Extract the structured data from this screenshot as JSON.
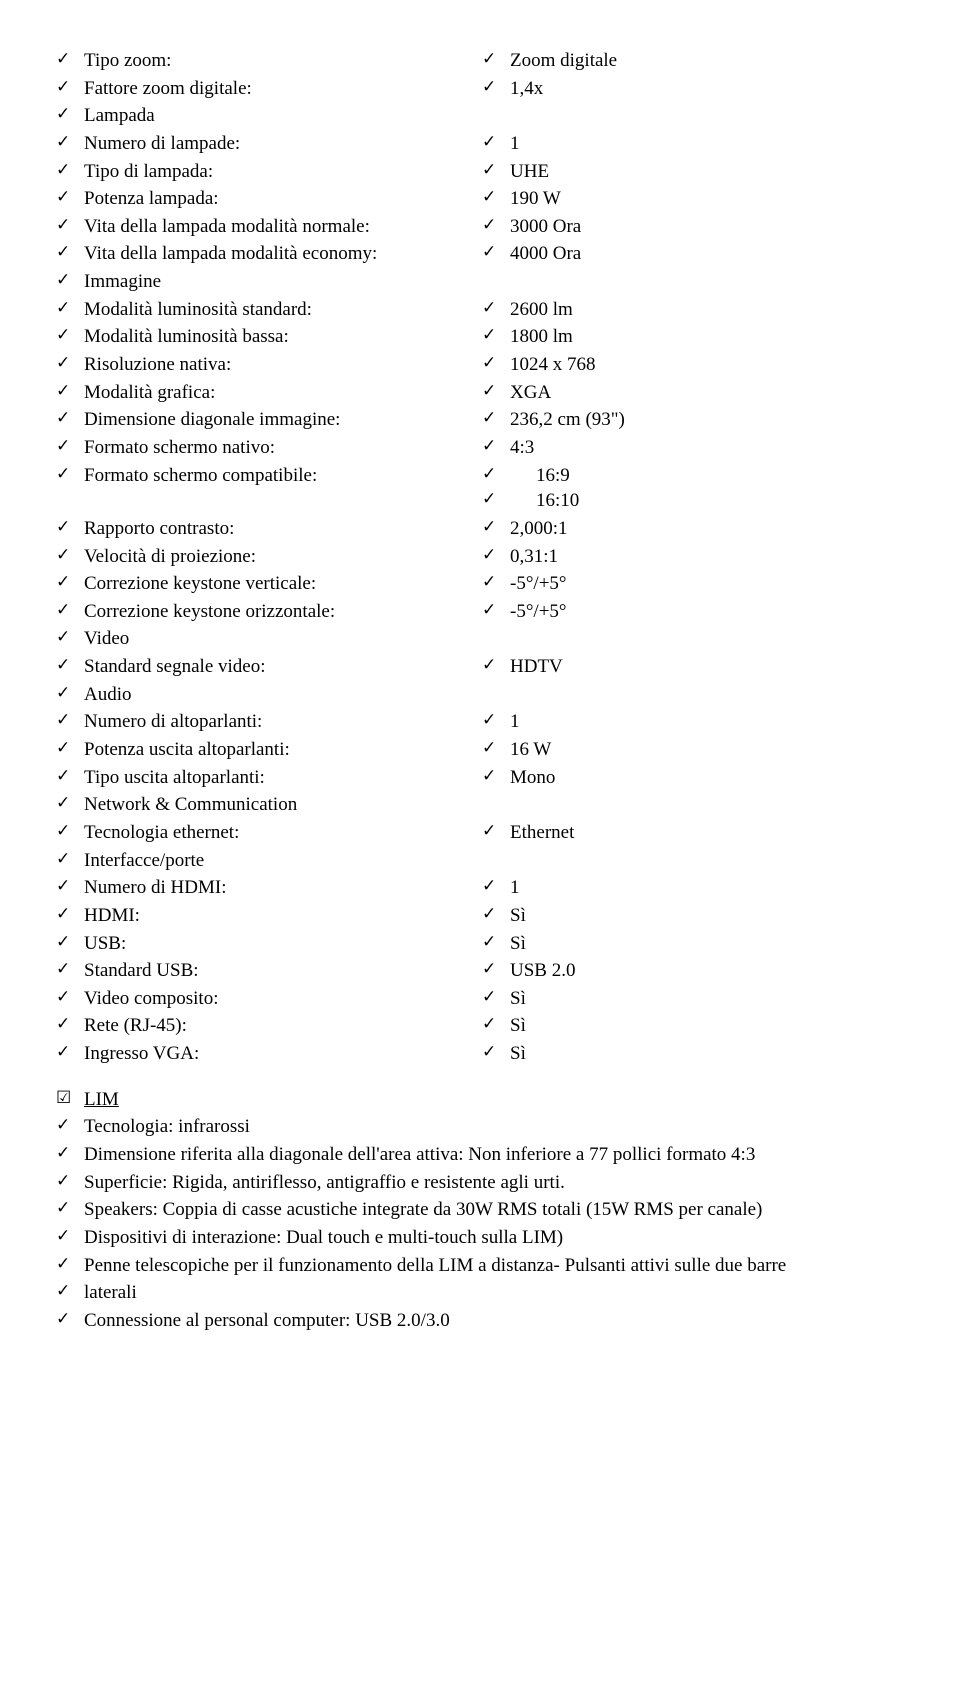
{
  "specs": [
    {
      "label": "Tipo zoom:",
      "value": "Zoom digitale"
    },
    {
      "label": "Fattore zoom digitale:",
      "value": "1,4x"
    },
    {
      "label": "Lampada",
      "value": null
    },
    {
      "label": "Numero di lampade:",
      "value": "1"
    },
    {
      "label": "Tipo di lampada:",
      "value": "UHE"
    },
    {
      "label": "Potenza lampada:",
      "value": "190 W"
    },
    {
      "label": "Vita della lampada modalità normale:",
      "value": "3000 Ora"
    },
    {
      "label": "Vita della lampada modalità economy:",
      "value": "4000 Ora"
    },
    {
      "label": "Immagine",
      "value": null
    },
    {
      "label": "Modalità luminosità standard:",
      "value": "2600 lm"
    },
    {
      "label": "Modalità luminosità bassa:",
      "value": "1800 lm"
    },
    {
      "label": "Risoluzione nativa:",
      "value": "1024 x 768"
    },
    {
      "label": "Modalità grafica:",
      "value": "XGA"
    },
    {
      "label": "Dimensione diagonale immagine:",
      "value": "236,2 cm (93\")"
    },
    {
      "label": "Formato schermo nativo:",
      "value": "4:3"
    },
    {
      "label": "Formato schermo compatibile:",
      "multi": [
        "16:9",
        "16:10"
      ]
    },
    {
      "label": "Rapporto contrasto:",
      "value": "2,000:1"
    },
    {
      "label": "Velocità di proiezione:",
      "value": "0,31:1"
    },
    {
      "label": "Correzione keystone verticale:",
      "value": "-5°/+5°"
    },
    {
      "label": "Correzione keystone orizzontale:",
      "value": "-5°/+5°"
    },
    {
      "label": "Video",
      "value": null
    },
    {
      "label": "Standard segnale video:",
      "value": "HDTV"
    },
    {
      "label": "Audio",
      "value": null
    },
    {
      "label": "Numero di altoparlanti:",
      "value": "1"
    },
    {
      "label": "Potenza uscita altoparlanti:",
      "value": "16 W"
    },
    {
      "label": "Tipo uscita altoparlanti:",
      "value": "Mono"
    },
    {
      "label": "Network & Communication",
      "value": null
    },
    {
      "label": "Tecnologia ethernet:",
      "value": "Ethernet"
    },
    {
      "label": "Interfacce/porte",
      "value": null
    },
    {
      "label": "Numero di HDMI:",
      "value": "1"
    },
    {
      "label": "HDMI:",
      "value": "Sì"
    },
    {
      "label": "USB:",
      "value": "Sì"
    },
    {
      "label": "Standard USB:",
      "value": "USB 2.0"
    },
    {
      "label": "Video composito:",
      "value": "Sì"
    },
    {
      "label": "Rete (RJ-45):",
      "value": "Sì"
    },
    {
      "label": "Ingresso VGA:",
      "value": "Sì"
    }
  ],
  "lim_title": "LIM",
  "lim_items": [
    "Tecnologia: infrarossi",
    "Dimensione riferita alla diagonale dell'area attiva: Non inferiore a 77 pollici formato 4:3",
    "Superficie: Rigida, antiriflesso, antigraffio e resistente agli urti.",
    "Speakers: Coppia di casse acustiche integrate da 30W RMS totali (15W RMS per canale)",
    "Dispositivi di interazione: Dual touch e multi-touch sulla LIM)",
    "Penne telescopiche per il funzionamento della LIM a distanza- Pulsanti attivi sulle due barre",
    "laterali",
    "Connessione al personal computer: USB 2.0/3.0"
  ],
  "glyphs": {
    "check": "✓",
    "box_check": "☑",
    "empty_box": ""
  }
}
